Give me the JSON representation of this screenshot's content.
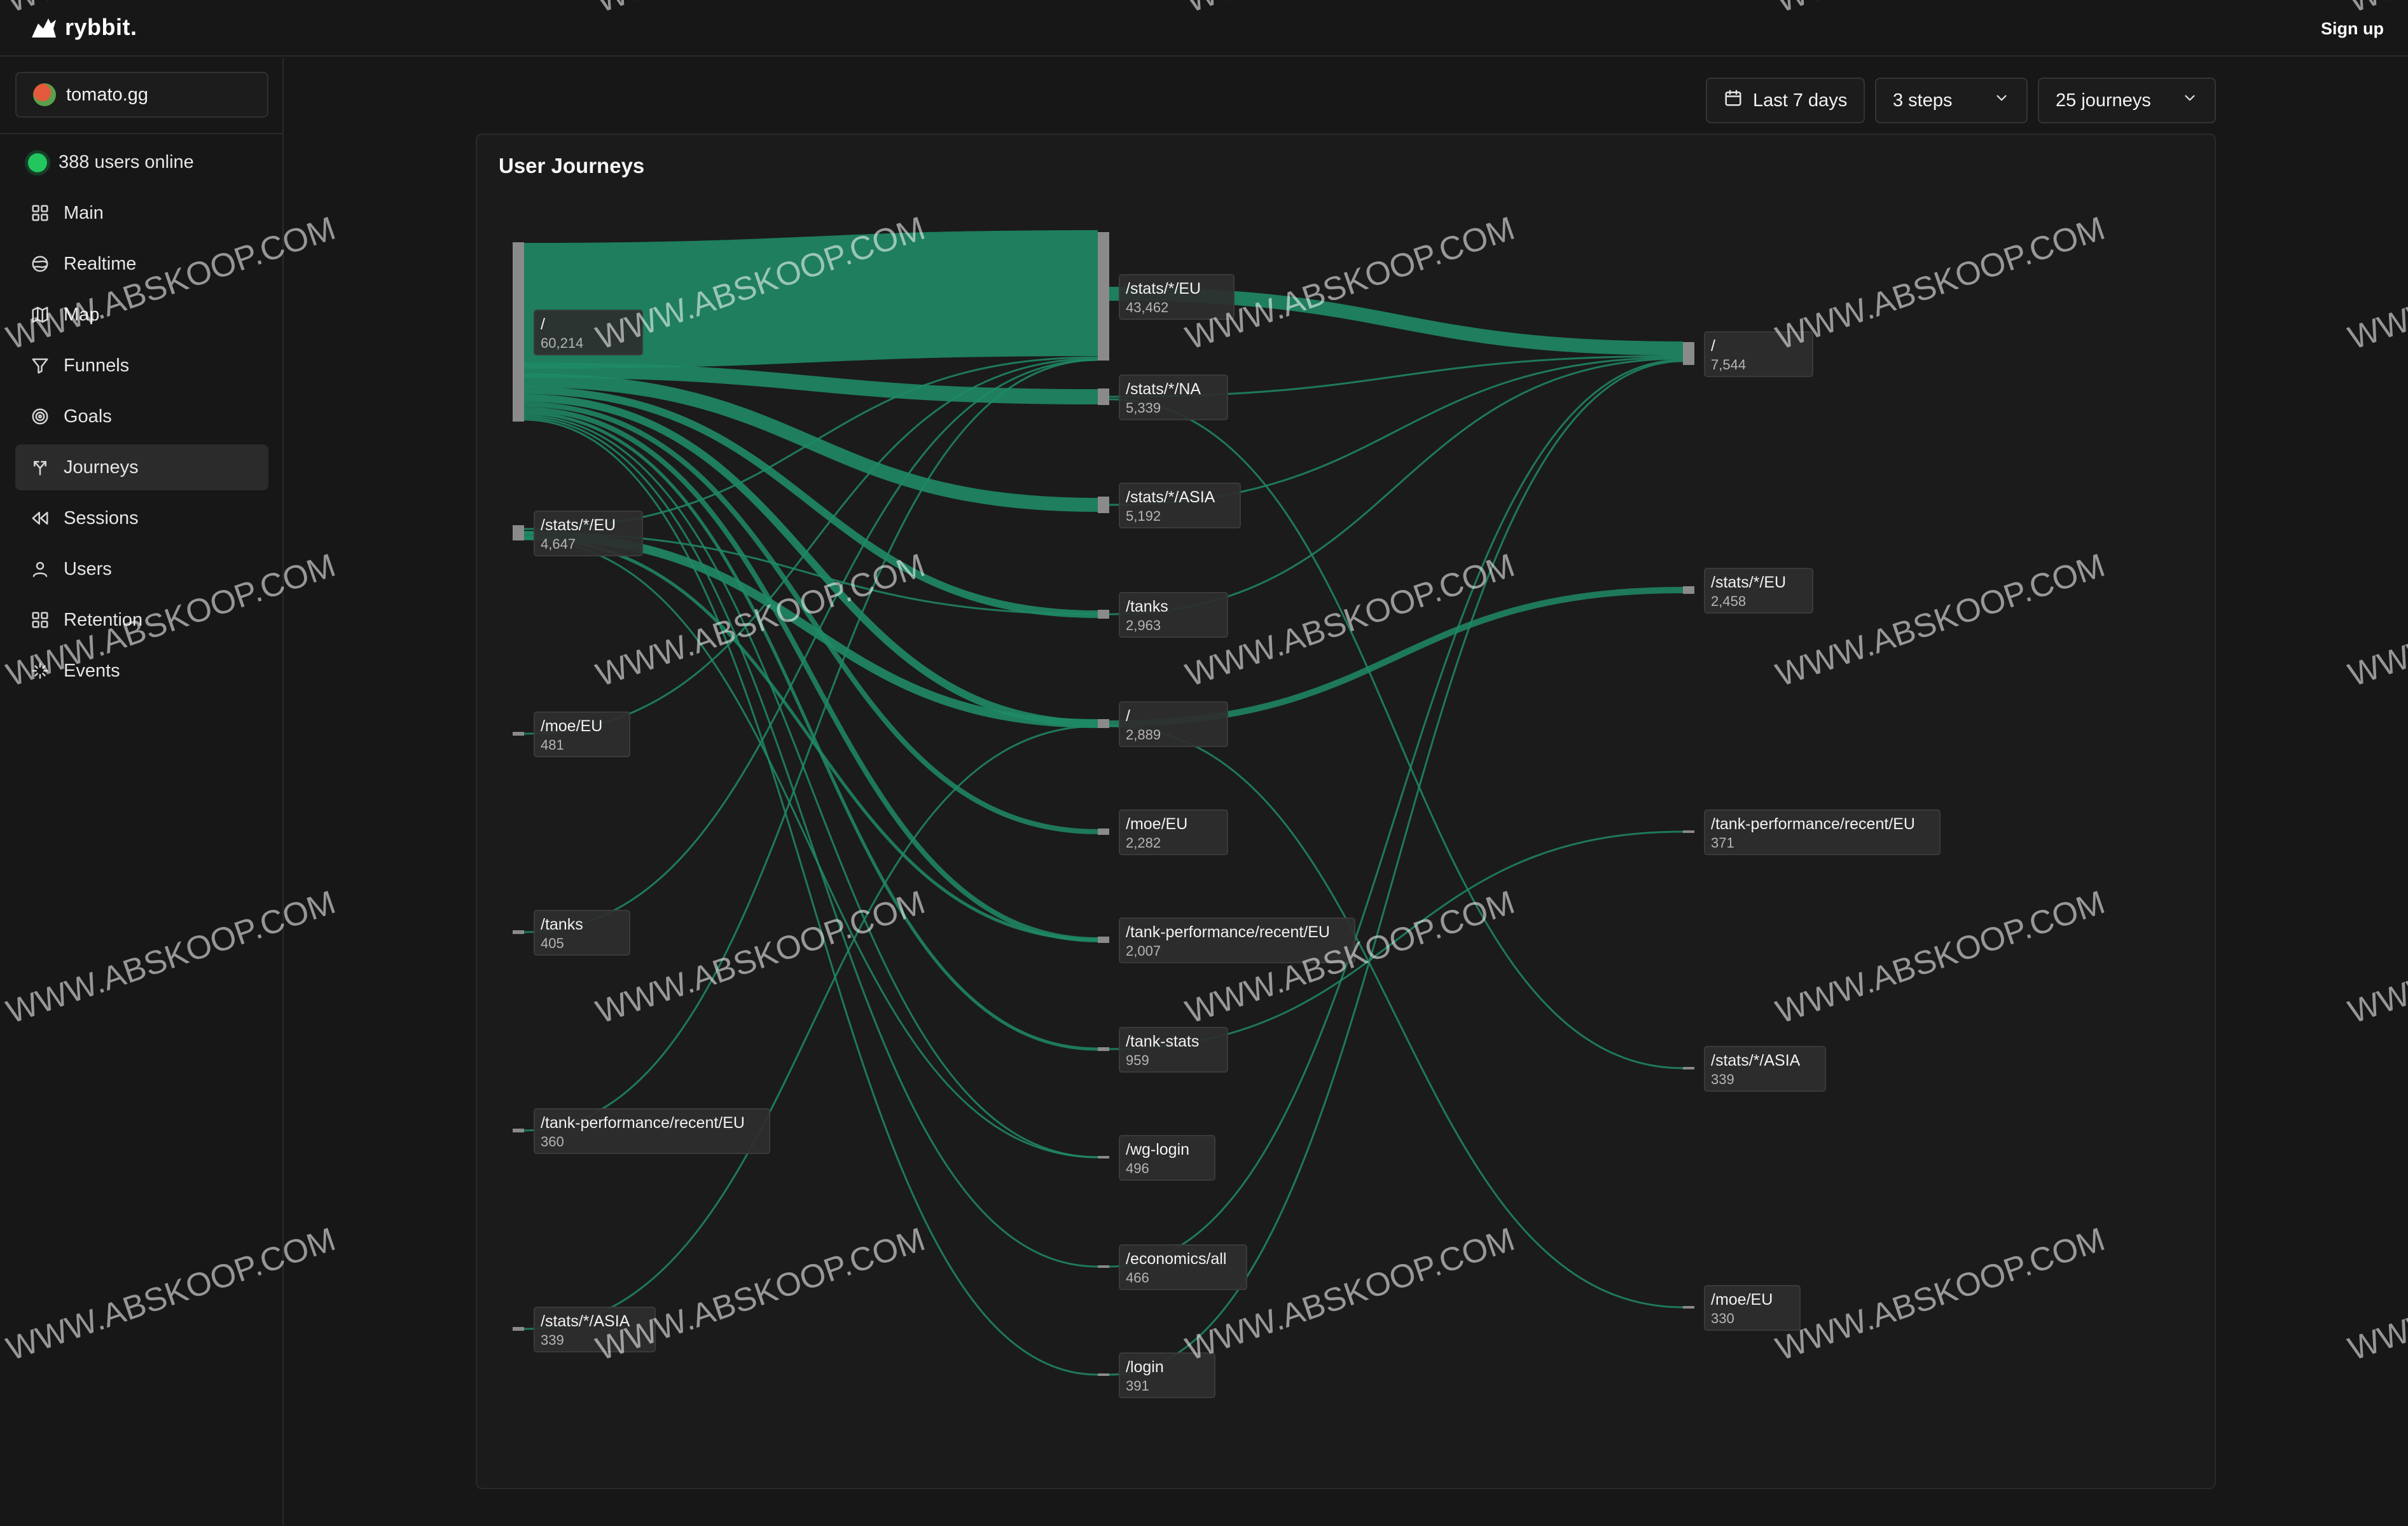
{
  "app": {
    "brand": "rybbit.",
    "signup_label": "Sign up"
  },
  "site": {
    "name": "tomato.gg"
  },
  "status": {
    "online_text": "388 users online"
  },
  "nav": [
    {
      "label": "Main",
      "icon": "grid-icon",
      "active": false
    },
    {
      "label": "Realtime",
      "icon": "globe-icon",
      "active": false
    },
    {
      "label": "Map",
      "icon": "map-icon",
      "active": false
    },
    {
      "label": "Funnels",
      "icon": "funnel-icon",
      "active": false
    },
    {
      "label": "Goals",
      "icon": "target-icon",
      "active": false
    },
    {
      "label": "Journeys",
      "icon": "split-icon",
      "active": true
    },
    {
      "label": "Sessions",
      "icon": "rewind-icon",
      "active": false
    },
    {
      "label": "Users",
      "icon": "user-icon",
      "active": false
    },
    {
      "label": "Retention",
      "icon": "grid-icon",
      "active": false
    },
    {
      "label": "Events",
      "icon": "sparkle-icon",
      "active": false
    }
  ],
  "controls": {
    "date_range": "Last 7 days",
    "steps": "3 steps",
    "journeys": "25 journeys"
  },
  "card": {
    "title": "User Journeys"
  },
  "accent_color": "#1f8a66",
  "sankey": {
    "columns": [
      [
        {
          "id": "a0",
          "label": "/",
          "count": "60,214"
        },
        {
          "id": "a1",
          "label": "/stats/*/EU",
          "count": "4,647"
        },
        {
          "id": "a2",
          "label": "/moe/EU",
          "count": "481"
        },
        {
          "id": "a3",
          "label": "/tanks",
          "count": "405"
        },
        {
          "id": "a4",
          "label": "/tank-performance/recent/EU",
          "count": "360"
        },
        {
          "id": "a5",
          "label": "/stats/*/ASIA",
          "count": "339"
        }
      ],
      [
        {
          "id": "b0",
          "label": "/stats/*/EU",
          "count": "43,462"
        },
        {
          "id": "b1",
          "label": "/stats/*/NA",
          "count": "5,339"
        },
        {
          "id": "b2",
          "label": "/stats/*/ASIA",
          "count": "5,192"
        },
        {
          "id": "b3",
          "label": "/tanks",
          "count": "2,963"
        },
        {
          "id": "b4",
          "label": "/",
          "count": "2,889"
        },
        {
          "id": "b5",
          "label": "/moe/EU",
          "count": "2,282"
        },
        {
          "id": "b6",
          "label": "/tank-performance/recent/EU",
          "count": "2,007"
        },
        {
          "id": "b7",
          "label": "/tank-stats",
          "count": "959"
        },
        {
          "id": "b8",
          "label": "/wg-login",
          "count": "496"
        },
        {
          "id": "b9",
          "label": "/economics/all",
          "count": "466"
        },
        {
          "id": "b10",
          "label": "/login",
          "count": "391"
        }
      ],
      [
        {
          "id": "c0",
          "label": "/",
          "count": "7,544"
        },
        {
          "id": "c1",
          "label": "/stats/*/EU",
          "count": "2,458"
        },
        {
          "id": "c2",
          "label": "/tank-performance/recent/EU",
          "count": "371"
        },
        {
          "id": "c3",
          "label": "/stats/*/ASIA",
          "count": "339"
        },
        {
          "id": "c4",
          "label": "/moe/EU",
          "count": "330"
        }
      ]
    ]
  },
  "watermark_text": "WWW.ABSKOOP.COM"
}
